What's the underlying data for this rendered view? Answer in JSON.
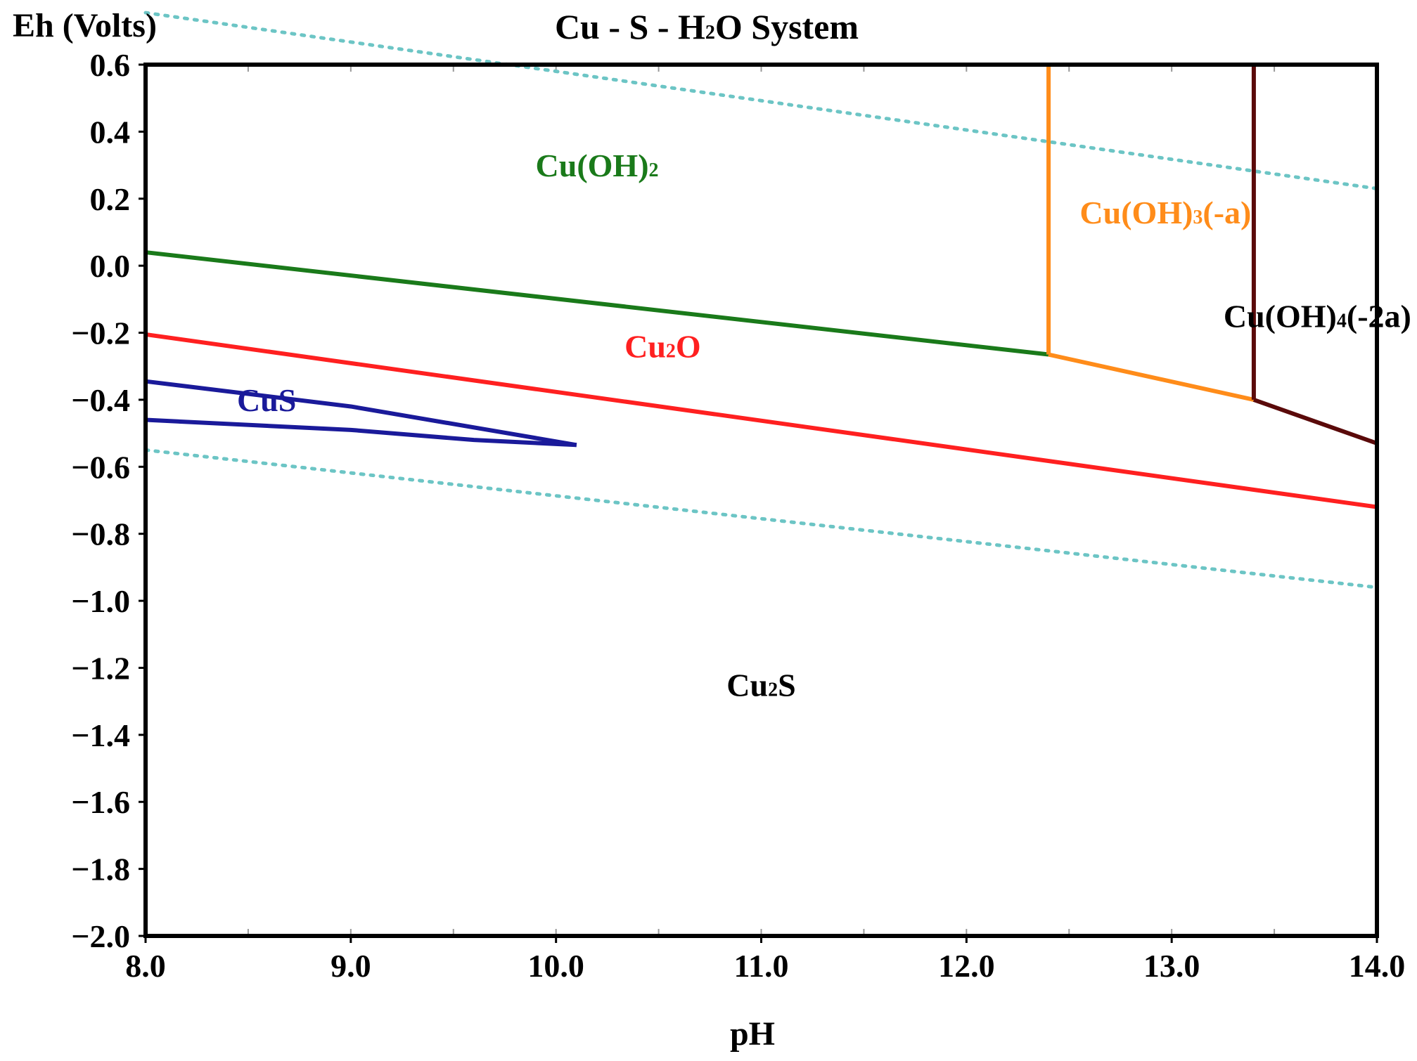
{
  "chart_data": {
    "type": "line",
    "title": "Cu - S - H₂O System",
    "title_parts": {
      "pre": "Cu - S - H",
      "sub": "2",
      "post": "O System"
    },
    "xlabel": "pH",
    "ylabel": "Eh (Volts)",
    "xlim": [
      8.0,
      14.0
    ],
    "ylim": [
      -2.0,
      0.6
    ],
    "xticks": [
      "8.0",
      "9.0",
      "10.0",
      "11.0",
      "12.0",
      "13.0",
      "14.0"
    ],
    "yticks": [
      "0.6",
      "0.4",
      "0.2",
      "0.0",
      "−0.2",
      "−0.4",
      "−0.6",
      "−0.8",
      "−1.0",
      "−1.2",
      "−1.4",
      "−1.6",
      "−1.8",
      "−2.0"
    ],
    "colors": {
      "cu_oh2": "#1a7a1a",
      "cu2o": "#ff2020",
      "cus": "#1a1a9a",
      "cus_edge": "#2020ff",
      "cu_oh3": "#ff8c1a",
      "cu_oh4": "#000000",
      "cu_oh4_lower": "#5a0a0a",
      "water": "#6cc5c5",
      "frame": "#000000"
    },
    "series": [
      {
        "name": "Cu(OH)2 top boundary",
        "color_key": "cu_oh2",
        "points": [
          [
            8.0,
            0.6
          ],
          [
            12.4,
            0.6
          ]
        ]
      },
      {
        "name": "Cu(OH)2 left boundary",
        "color_key": "cu_oh2",
        "points": [
          [
            8.0,
            0.6
          ],
          [
            8.0,
            0.04
          ]
        ]
      },
      {
        "name": "Cu(OH)2 / Cu2O boundary",
        "color_key": "cu_oh2",
        "points": [
          [
            8.0,
            0.04
          ],
          [
            12.4,
            -0.265
          ]
        ]
      },
      {
        "name": "Cu2O left boundary",
        "color_key": "cu2o",
        "points": [
          [
            8.0,
            0.04
          ],
          [
            8.0,
            -0.205
          ]
        ]
      },
      {
        "name": "Cu2O / Cu2S boundary",
        "color_key": "cu2o",
        "points": [
          [
            8.0,
            -0.205
          ],
          [
            14.0,
            -0.72
          ]
        ]
      },
      {
        "name": "Cu2O right boundary",
        "color_key": "cu2o",
        "points": [
          [
            14.0,
            -0.53
          ],
          [
            14.0,
            -0.72
          ]
        ]
      },
      {
        "name": "CuS upper boundary",
        "color_key": "cus",
        "points": [
          [
            8.0,
            -0.345
          ],
          [
            9.0,
            -0.42
          ],
          [
            10.1,
            -0.535
          ]
        ]
      },
      {
        "name": "CuS lower boundary",
        "color_key": "cus",
        "points": [
          [
            8.0,
            -0.46
          ],
          [
            9.0,
            -0.49
          ],
          [
            9.6,
            -0.52
          ],
          [
            10.1,
            -0.535
          ]
        ]
      },
      {
        "name": "CuS left edge",
        "color_key": "cus_edge",
        "points": [
          [
            8.0,
            -0.345
          ],
          [
            8.0,
            -0.46
          ]
        ]
      },
      {
        "name": "Cu(OH)3(-a) top boundary",
        "color_key": "cu_oh3",
        "points": [
          [
            12.4,
            0.6
          ],
          [
            13.4,
            0.6
          ]
        ]
      },
      {
        "name": "Cu(OH)2 / Cu(OH)3(-a) boundary",
        "color_key": "cu_oh3",
        "points": [
          [
            12.4,
            0.6
          ],
          [
            12.4,
            -0.265
          ]
        ]
      },
      {
        "name": "Cu(OH)3(-a) lower boundary",
        "color_key": "cu_oh3",
        "points": [
          [
            12.4,
            -0.265
          ],
          [
            13.4,
            -0.4
          ]
        ]
      },
      {
        "name": "Cu(OH)3(-a) / Cu(OH)4(-2a) boundary",
        "color_key": "cu_oh4_lower",
        "points": [
          [
            13.4,
            0.6
          ],
          [
            13.4,
            -0.4
          ]
        ]
      },
      {
        "name": "Cu(OH)4(-2a) lower boundary",
        "color_key": "cu_oh4_lower",
        "points": [
          [
            13.4,
            -0.4
          ],
          [
            14.0,
            -0.53
          ]
        ]
      },
      {
        "name": "Cu(OH)4(-2a) top boundary",
        "color_key": "cu_oh4",
        "points": [
          [
            13.4,
            0.6
          ],
          [
            14.0,
            0.6
          ]
        ]
      },
      {
        "name": "Cu(OH)4(-2a) right boundary",
        "color_key": "cu_oh4",
        "points": [
          [
            14.0,
            0.6
          ],
          [
            14.0,
            -0.53
          ]
        ]
      },
      {
        "name": "Cu2S left boundary",
        "color_key": "frame",
        "points": [
          [
            8.0,
            -0.205
          ],
          [
            8.0,
            -2.0
          ]
        ]
      }
    ],
    "water_lines": [
      {
        "name": "O2 / H2O upper stability",
        "points": [
          [
            8.0,
            0.755
          ],
          [
            14.0,
            0.23
          ]
        ]
      },
      {
        "name": "H2O / H2 lower stability",
        "points": [
          [
            8.0,
            -0.55
          ],
          [
            14.0,
            -0.96
          ]
        ]
      }
    ],
    "regions": [
      {
        "label": "Cu(OH)2",
        "pre": "Cu(OH)",
        "sub": "2",
        "post": "",
        "color_key": "cu_oh2",
        "at": [
          10.2,
          0.3
        ]
      },
      {
        "label": "Cu(OH)3(-a)",
        "pre": "Cu(OH)",
        "sub": "3",
        "post": "(-a)",
        "color_key": "cu_oh3",
        "at": [
          12.97,
          0.16
        ]
      },
      {
        "label": "Cu(OH)4(-2a)",
        "pre": "Cu(OH)",
        "sub": "4",
        "post": "(-2a)",
        "color_key": "cu_oh4",
        "at": [
          13.71,
          -0.15
        ]
      },
      {
        "label": "Cu2O",
        "pre": "Cu",
        "sub": "2",
        "post": "O",
        "color_key": "cu2o",
        "at": [
          10.52,
          -0.24
        ]
      },
      {
        "label": "CuS",
        "pre": "CuS",
        "sub": "",
        "post": "",
        "color_key": "cus",
        "at": [
          8.59,
          -0.4
        ]
      },
      {
        "label": "Cu2S",
        "pre": "Cu",
        "sub": "2",
        "post": "S",
        "color_key": "cu_oh4",
        "at": [
          11.0,
          -1.25
        ]
      }
    ]
  }
}
